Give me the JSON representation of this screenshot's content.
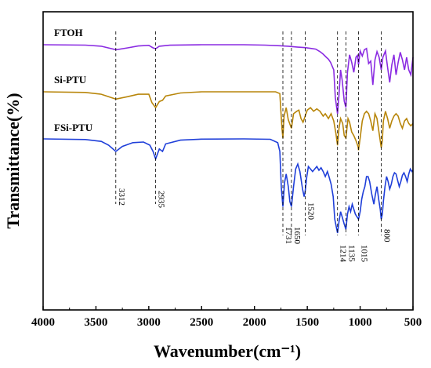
{
  "chart_data": {
    "type": "line",
    "title": "",
    "xlabel": "Wavenumber(cm⁻¹)",
    "ylabel": "Transmittance(%)",
    "xlim": [
      4000,
      500
    ],
    "x_reversed": true,
    "x_ticks": [
      4000,
      3500,
      3000,
      2500,
      2000,
      1500,
      1000,
      500
    ],
    "y_ticks_shown": false,
    "grid": false,
    "legend": "inline labels at top-left of each trace",
    "series": [
      {
        "name": "FTOH",
        "color": "#8a2be2",
        "points": [
          [
            4000,
            0.0
          ],
          [
            3600,
            0.3
          ],
          [
            3450,
            1.2
          ],
          [
            3310,
            4.0
          ],
          [
            3200,
            2.5
          ],
          [
            3100,
            1.0
          ],
          [
            3000,
            0.5
          ],
          [
            2960,
            2.5
          ],
          [
            2935,
            3.2
          ],
          [
            2900,
            1.2
          ],
          [
            2800,
            0.4
          ],
          [
            2500,
            0.0
          ],
          [
            2100,
            0.0
          ],
          [
            1900,
            0.3
          ],
          [
            1760,
            0.8
          ],
          [
            1680,
            1.2
          ],
          [
            1600,
            1.8
          ],
          [
            1520,
            2.3
          ],
          [
            1460,
            3.0
          ],
          [
            1420,
            3.5
          ],
          [
            1380,
            5.5
          ],
          [
            1350,
            7.5
          ],
          [
            1320,
            10.0
          ],
          [
            1300,
            11.5
          ],
          [
            1280,
            14.0
          ],
          [
            1250,
            20.0
          ],
          [
            1235,
            42.0
          ],
          [
            1214,
            55.0
          ],
          [
            1200,
            40.0
          ],
          [
            1185,
            20.0
          ],
          [
            1170,
            28.0
          ],
          [
            1150,
            45.0
          ],
          [
            1135,
            50.0
          ],
          [
            1120,
            22.0
          ],
          [
            1100,
            8.0
          ],
          [
            1080,
            14.0
          ],
          [
            1060,
            22.0
          ],
          [
            1040,
            10.0
          ],
          [
            1025,
            8.5
          ],
          [
            1015,
            16.0
          ],
          [
            1000,
            5.0
          ],
          [
            980,
            9.0
          ],
          [
            960,
            4.0
          ],
          [
            940,
            3.0
          ],
          [
            920,
            15.0
          ],
          [
            900,
            13.0
          ],
          [
            880,
            32.0
          ],
          [
            860,
            12.0
          ],
          [
            840,
            5.5
          ],
          [
            820,
            10.0
          ],
          [
            800,
            20.0
          ],
          [
            785,
            10.0
          ],
          [
            760,
            5.0
          ],
          [
            740,
            18.0
          ],
          [
            720,
            30.0
          ],
          [
            700,
            16.0
          ],
          [
            680,
            8.0
          ],
          [
            660,
            24.0
          ],
          [
            640,
            14.0
          ],
          [
            620,
            6.0
          ],
          [
            600,
            12.0
          ],
          [
            580,
            20.0
          ],
          [
            560,
            10.0
          ],
          [
            540,
            20.0
          ],
          [
            520,
            24.0
          ],
          [
            500,
            10.0
          ]
        ]
      },
      {
        "name": "Si-PTU",
        "color": "#b8860b",
        "points": [
          [
            4000,
            0.0
          ],
          [
            3600,
            0.5
          ],
          [
            3450,
            2.0
          ],
          [
            3312,
            6.0
          ],
          [
            3200,
            4.0
          ],
          [
            3100,
            2.0
          ],
          [
            3000,
            2.0
          ],
          [
            2970,
            9.0
          ],
          [
            2935,
            13.0
          ],
          [
            2900,
            8.0
          ],
          [
            2870,
            7.0
          ],
          [
            2840,
            3.5
          ],
          [
            2700,
            1.0
          ],
          [
            2500,
            0.0
          ],
          [
            2100,
            0.0
          ],
          [
            1800,
            0.0
          ],
          [
            1760,
            1.5
          ],
          [
            1740,
            30.0
          ],
          [
            1731,
            38.0
          ],
          [
            1720,
            20.0
          ],
          [
            1700,
            13.0
          ],
          [
            1680,
            23.0
          ],
          [
            1650,
            30.0
          ],
          [
            1630,
            18.0
          ],
          [
            1600,
            16.0
          ],
          [
            1580,
            15.0
          ],
          [
            1560,
            22.0
          ],
          [
            1540,
            25.0
          ],
          [
            1520,
            20.0
          ],
          [
            1500,
            15.0
          ],
          [
            1470,
            13.0
          ],
          [
            1440,
            16.0
          ],
          [
            1410,
            14.0
          ],
          [
            1380,
            16.0
          ],
          [
            1350,
            20.0
          ],
          [
            1330,
            18.0
          ],
          [
            1300,
            22.0
          ],
          [
            1275,
            18.0
          ],
          [
            1250,
            24.0
          ],
          [
            1230,
            34.0
          ],
          [
            1214,
            44.0
          ],
          [
            1200,
            30.0
          ],
          [
            1185,
            22.0
          ],
          [
            1165,
            26.0
          ],
          [
            1150,
            36.0
          ],
          [
            1135,
            38.0
          ],
          [
            1115,
            22.0
          ],
          [
            1100,
            25.0
          ],
          [
            1080,
            33.0
          ],
          [
            1060,
            36.0
          ],
          [
            1040,
            40.0
          ],
          [
            1020,
            45.0
          ],
          [
            1015,
            48.0
          ],
          [
            1000,
            38.0
          ],
          [
            980,
            24.0
          ],
          [
            960,
            18.0
          ],
          [
            940,
            16.0
          ],
          [
            920,
            18.0
          ],
          [
            900,
            24.0
          ],
          [
            880,
            32.0
          ],
          [
            860,
            18.0
          ],
          [
            840,
            22.0
          ],
          [
            820,
            34.0
          ],
          [
            800,
            46.0
          ],
          [
            790,
            40.0
          ],
          [
            780,
            24.0
          ],
          [
            760,
            16.0
          ],
          [
            740,
            22.0
          ],
          [
            720,
            30.0
          ],
          [
            700,
            24.0
          ],
          [
            680,
            20.0
          ],
          [
            660,
            18.0
          ],
          [
            640,
            20.0
          ],
          [
            620,
            26.0
          ],
          [
            600,
            30.0
          ],
          [
            580,
            24.0
          ],
          [
            560,
            22.0
          ],
          [
            540,
            26.0
          ],
          [
            520,
            28.0
          ],
          [
            500,
            26.0
          ]
        ]
      },
      {
        "name": "FSi-PTU",
        "color": "#1f3fd9",
        "points": [
          [
            4000,
            0.0
          ],
          [
            3600,
            0.5
          ],
          [
            3450,
            2.0
          ],
          [
            3380,
            5.0
          ],
          [
            3312,
            10.0
          ],
          [
            3250,
            6.0
          ],
          [
            3150,
            3.0
          ],
          [
            3050,
            2.5
          ],
          [
            2990,
            5.0
          ],
          [
            2960,
            10.0
          ],
          [
            2935,
            16.0
          ],
          [
            2900,
            8.0
          ],
          [
            2870,
            10.0
          ],
          [
            2840,
            4.0
          ],
          [
            2700,
            1.0
          ],
          [
            2500,
            0.2
          ],
          [
            2100,
            0.0
          ],
          [
            1850,
            0.3
          ],
          [
            1780,
            3.0
          ],
          [
            1760,
            10.0
          ],
          [
            1745,
            40.0
          ],
          [
            1731,
            54.0
          ],
          [
            1715,
            35.0
          ],
          [
            1700,
            28.0
          ],
          [
            1680,
            38.0
          ],
          [
            1665,
            50.0
          ],
          [
            1650,
            54.0
          ],
          [
            1630,
            38.0
          ],
          [
            1610,
            24.0
          ],
          [
            1590,
            20.0
          ],
          [
            1570,
            26.0
          ],
          [
            1545,
            40.0
          ],
          [
            1530,
            46.0
          ],
          [
            1520,
            42.0
          ],
          [
            1505,
            30.0
          ],
          [
            1490,
            22.0
          ],
          [
            1470,
            24.0
          ],
          [
            1450,
            26.0
          ],
          [
            1430,
            24.0
          ],
          [
            1410,
            22.0
          ],
          [
            1390,
            25.0
          ],
          [
            1370,
            23.0
          ],
          [
            1350,
            26.0
          ],
          [
            1330,
            30.0
          ],
          [
            1310,
            26.0
          ],
          [
            1295,
            30.0
          ],
          [
            1275,
            36.0
          ],
          [
            1255,
            46.0
          ],
          [
            1240,
            64.0
          ],
          [
            1214,
            75.0
          ],
          [
            1200,
            66.0
          ],
          [
            1185,
            58.0
          ],
          [
            1170,
            62.0
          ],
          [
            1150,
            68.0
          ],
          [
            1135,
            72.0
          ],
          [
            1120,
            60.0
          ],
          [
            1105,
            54.0
          ],
          [
            1090,
            58.0
          ],
          [
            1075,
            52.0
          ],
          [
            1060,
            56.0
          ],
          [
            1045,
            60.0
          ],
          [
            1030,
            62.0
          ],
          [
            1015,
            64.0
          ],
          [
            1000,
            58.0
          ],
          [
            985,
            48.0
          ],
          [
            970,
            42.0
          ],
          [
            955,
            38.0
          ],
          [
            940,
            30.0
          ],
          [
            925,
            30.0
          ],
          [
            910,
            34.0
          ],
          [
            890,
            44.0
          ],
          [
            870,
            52.0
          ],
          [
            855,
            44.0
          ],
          [
            840,
            38.0
          ],
          [
            825,
            48.0
          ],
          [
            810,
            56.0
          ],
          [
            800,
            64.0
          ],
          [
            790,
            60.0
          ],
          [
            780,
            50.0
          ],
          [
            765,
            38.0
          ],
          [
            750,
            30.0
          ],
          [
            735,
            34.0
          ],
          [
            720,
            40.0
          ],
          [
            705,
            36.0
          ],
          [
            690,
            30.0
          ],
          [
            675,
            27.0
          ],
          [
            660,
            28.0
          ],
          [
            645,
            33.0
          ],
          [
            630,
            38.0
          ],
          [
            615,
            34.0
          ],
          [
            600,
            29.0
          ],
          [
            585,
            27.0
          ],
          [
            570,
            30.0
          ],
          [
            555,
            34.0
          ],
          [
            540,
            28.0
          ],
          [
            525,
            24.0
          ],
          [
            510,
            26.0
          ],
          [
            500,
            25.0
          ]
        ]
      }
    ],
    "reference_lines": [
      3312,
      2935,
      1731,
      1650,
      1520,
      1214,
      1135,
      1015,
      800
    ],
    "annotations": [
      "3312",
      "2935",
      "1731",
      "1650",
      "1520",
      "1214",
      "1135",
      "1015",
      "800"
    ]
  }
}
